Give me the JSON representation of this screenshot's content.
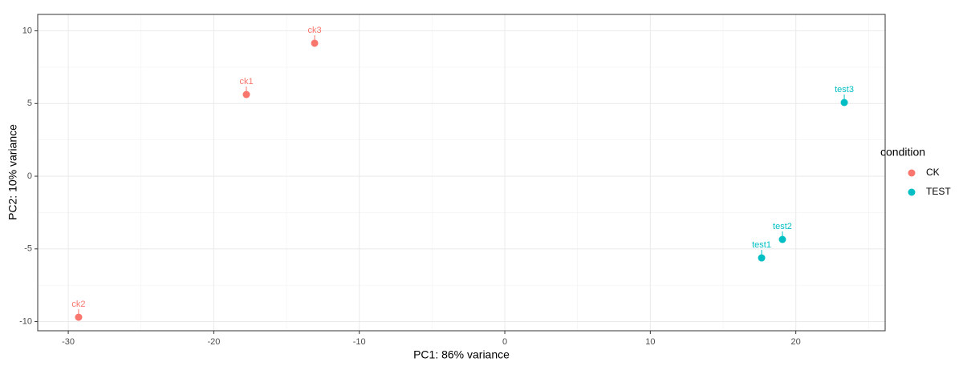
{
  "chart_data": {
    "type": "scatter",
    "x_label": "PC1: 86% variance",
    "y_label": "PC2: 10% variance",
    "series": [
      {
        "name": "CK",
        "color": "#F8766D",
        "x": [
          -17.76,
          -29.29,
          -13.07
        ],
        "values": [
          5.62,
          -9.7,
          9.15
        ],
        "point_labels": [
          "ck1",
          "ck2",
          "ck3"
        ]
      },
      {
        "name": "TEST",
        "color": "#00BFC4",
        "x": [
          17.65,
          19.08,
          23.33
        ],
        "values": [
          -5.62,
          -4.35,
          5.07
        ],
        "point_labels": [
          "test1",
          "test2",
          "test3"
        ]
      }
    ],
    "xlim": [
      -32.1,
      26.14
    ],
    "ylim": [
      -10.63,
      11.13
    ],
    "xticks": [
      -30,
      -20,
      -10,
      0,
      10,
      20
    ],
    "yticks": [
      -10,
      -5,
      0,
      5,
      10
    ],
    "grid": true,
    "legend_title": "condition",
    "legend_position": "right"
  }
}
